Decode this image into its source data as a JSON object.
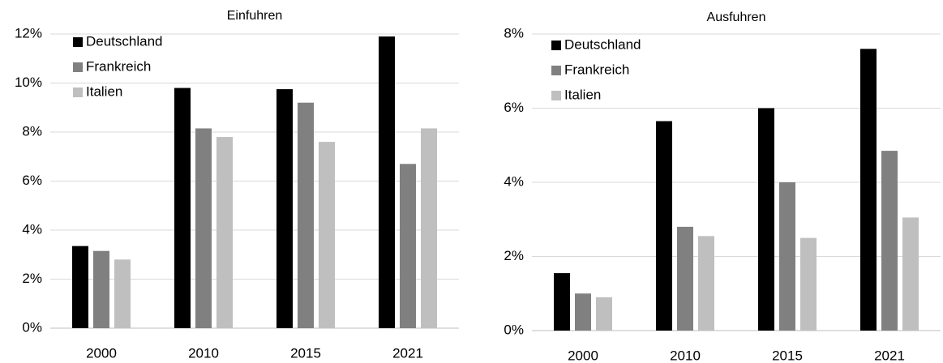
{
  "chart_data": [
    {
      "type": "bar",
      "title": "Einfuhren",
      "categories": [
        "2000",
        "2010",
        "2015",
        "2021"
      ],
      "series": [
        {
          "name": "Deutschland",
          "color": "#000000",
          "values": [
            3.35,
            9.8,
            9.75,
            11.9
          ]
        },
        {
          "name": "Frankreich",
          "color": "#808080",
          "values": [
            3.15,
            8.15,
            9.2,
            6.7
          ]
        },
        {
          "name": "Italien",
          "color": "#bfbfbf",
          "values": [
            2.8,
            7.8,
            7.6,
            8.15
          ]
        }
      ],
      "ylim": [
        0,
        12
      ],
      "yticks": [
        {
          "value": 0,
          "label": "0%"
        },
        {
          "value": 2,
          "label": "2%"
        },
        {
          "value": 4,
          "label": "4%"
        },
        {
          "value": 6,
          "label": "6%"
        },
        {
          "value": 8,
          "label": "8%"
        },
        {
          "value": 10,
          "label": "10%"
        },
        {
          "value": 12,
          "label": "12%"
        }
      ],
      "grid": true,
      "legend": "top-left"
    },
    {
      "type": "bar",
      "title": "Ausfuhren",
      "categories": [
        "2000",
        "2010",
        "2015",
        "2021"
      ],
      "series": [
        {
          "name": "Deutschland",
          "color": "#000000",
          "values": [
            1.55,
            5.65,
            6.0,
            7.6
          ]
        },
        {
          "name": "Frankreich",
          "color": "#808080",
          "values": [
            1.0,
            2.8,
            4.0,
            4.85
          ]
        },
        {
          "name": "Italien",
          "color": "#bfbfbf",
          "values": [
            0.9,
            2.55,
            2.5,
            3.05
          ]
        }
      ],
      "ylim": [
        0,
        8
      ],
      "yticks": [
        {
          "value": 0,
          "label": "0%"
        },
        {
          "value": 2,
          "label": "2%"
        },
        {
          "value": 4,
          "label": "4%"
        },
        {
          "value": 6,
          "label": "6%"
        },
        {
          "value": 8,
          "label": "8%"
        }
      ],
      "grid": true,
      "legend": "top-left"
    }
  ]
}
